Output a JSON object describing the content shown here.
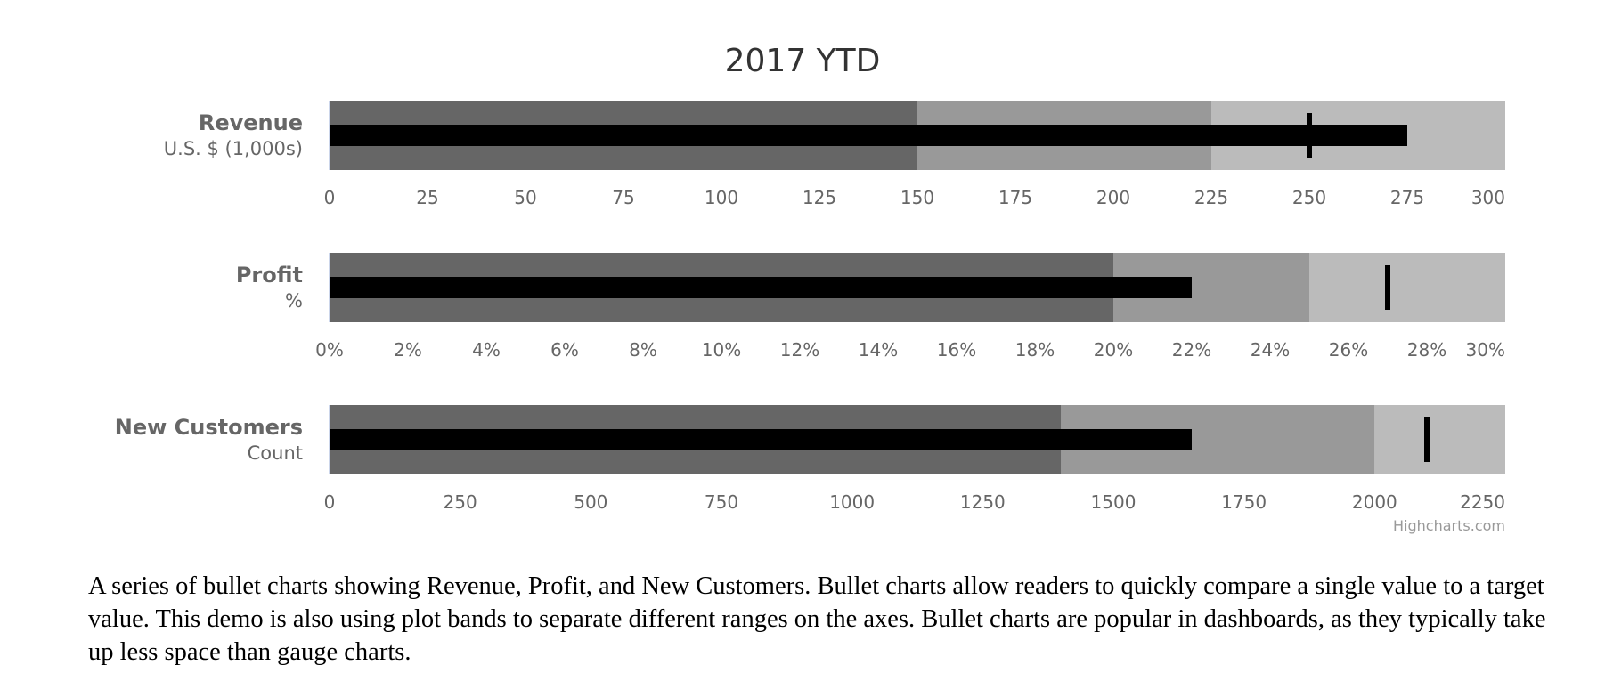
{
  "credits": "Highcharts.com",
  "description": "A series of bullet charts showing Revenue, Profit, and New Customers. Bullet charts allow readers to quickly compare a single value to a target value. This demo is also using plot bands to separate different ranges on the axes. Bullet charts are popular in dashboards, as they typically take up less space than gauge charts.",
  "colors": {
    "band_dark": "#666666",
    "band_mid": "#999999",
    "band_light": "#bbbbbb",
    "bar": "#000000",
    "target": "#000000"
  },
  "chart_data": {
    "type": "bullet",
    "title": "2017 YTD",
    "rows": [
      {
        "title": "Revenue",
        "subtitle": "U.S. $ (1,000s)",
        "value": 275,
        "target": 250,
        "range": [
          0,
          300
        ],
        "bands": [
          {
            "from": 0,
            "to": 150,
            "color": "#666666"
          },
          {
            "from": 150,
            "to": 225,
            "color": "#999999"
          },
          {
            "from": 225,
            "to": 300,
            "color": "#bbbbbb"
          }
        ],
        "ticks": [
          "0",
          "25",
          "50",
          "75",
          "100",
          "125",
          "150",
          "175",
          "200",
          "225",
          "250",
          "275",
          "300"
        ],
        "tick_values": [
          0,
          25,
          50,
          75,
          100,
          125,
          150,
          175,
          200,
          225,
          250,
          275,
          300
        ]
      },
      {
        "title": "Profit",
        "subtitle": "%",
        "value": 22,
        "target": 27,
        "range": [
          0,
          30
        ],
        "bands": [
          {
            "from": 0,
            "to": 20,
            "color": "#666666"
          },
          {
            "from": 20,
            "to": 25,
            "color": "#999999"
          },
          {
            "from": 25,
            "to": 30,
            "color": "#bbbbbb"
          }
        ],
        "ticks": [
          "0%",
          "2%",
          "4%",
          "6%",
          "8%",
          "10%",
          "12%",
          "14%",
          "16%",
          "18%",
          "20%",
          "22%",
          "24%",
          "26%",
          "28%",
          "30%"
        ],
        "tick_values": [
          0,
          2,
          4,
          6,
          8,
          10,
          12,
          14,
          16,
          18,
          20,
          22,
          24,
          26,
          28,
          30
        ]
      },
      {
        "title": "New Customers",
        "subtitle": "Count",
        "value": 1650,
        "target": 2100,
        "range": [
          0,
          2250
        ],
        "bands": [
          {
            "from": 0,
            "to": 1400,
            "color": "#666666"
          },
          {
            "from": 1400,
            "to": 2000,
            "color": "#999999"
          },
          {
            "from": 2000,
            "to": 2250,
            "color": "#bbbbbb"
          }
        ],
        "ticks": [
          "0",
          "250",
          "500",
          "750",
          "1000",
          "1250",
          "1500",
          "1750",
          "2000",
          "2250"
        ],
        "tick_values": [
          0,
          250,
          500,
          750,
          1000,
          1250,
          1500,
          1750,
          2000,
          2250
        ]
      }
    ]
  }
}
